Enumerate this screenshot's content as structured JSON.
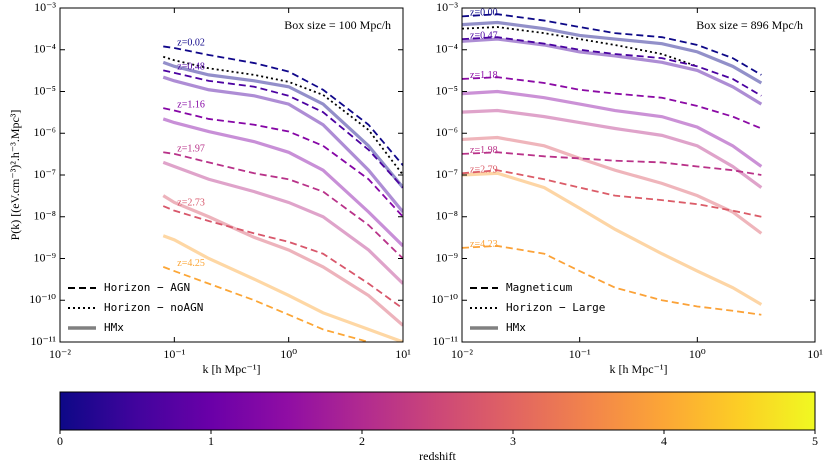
{
  "chart_data": [
    {
      "type": "line",
      "xscale": "log",
      "yscale": "log",
      "box_text": "Box size = 100 Mpc/h",
      "xlabel": "k [h Mpc⁻¹]",
      "ylabel": "P(k) [(eV.cm⁻³)².h⁻³.Mpc³]",
      "xlim": [
        0.01,
        10
      ],
      "ylim": [
        1e-11,
        0.001
      ],
      "xticks": [
        {
          "value": 0.01,
          "label": "10⁻²"
        },
        {
          "value": 0.1,
          "label": "10⁻¹"
        },
        {
          "value": 1,
          "label": "10⁰"
        },
        {
          "value": 10,
          "label": "10¹"
        }
      ],
      "yticks": [
        {
          "value": 1e-11,
          "label": "10⁻¹¹"
        },
        {
          "value": 1e-10,
          "label": "10⁻¹⁰"
        },
        {
          "value": 1e-09,
          "label": "10⁻⁹"
        },
        {
          "value": 1e-08,
          "label": "10⁻⁸"
        },
        {
          "value": 1e-07,
          "label": "10⁻⁷"
        },
        {
          "value": 1e-06,
          "label": "10⁻⁶"
        },
        {
          "value": 1e-05,
          "label": "10⁻⁵"
        },
        {
          "value": 0.0001,
          "label": "10⁻⁴"
        },
        {
          "value": 0.001,
          "label": "10⁻³"
        }
      ],
      "legend_loc": "lower left",
      "legend": [
        {
          "label": "Horizon − AGN",
          "dash": "dashed",
          "color": "#000000"
        },
        {
          "label": "Horizon − noAGN",
          "dash": "dotted",
          "color": "#000000"
        },
        {
          "label": "HMx",
          "dash": "solid",
          "color": "#808080"
        }
      ],
      "x": [
        0.08,
        0.1,
        0.2,
        0.5,
        1,
        2,
        5,
        10
      ],
      "series": [
        {
          "dash": "solid",
          "color": "#10078a",
          "opacity": 0.45,
          "values": [
            5e-05,
            4e-05,
            2.5e-05,
            1.8e-05,
            1.3e-05,
            5e-06,
            5e-07,
            5e-08
          ]
        },
        {
          "dash": "solid",
          "color": "#4c02a1",
          "opacity": 0.45,
          "values": [
            2.2e-05,
            1.8e-05,
            1.1e-05,
            7.9e-06,
            5e-06,
            1.6e-06,
            1.3e-07,
            1.3e-08
          ]
        },
        {
          "dash": "solid",
          "color": "#8606a6",
          "opacity": 0.45,
          "values": [
            2.2e-06,
            1.8e-06,
            1.1e-06,
            6.3e-07,
            3.5e-07,
            1.3e-07,
            1.3e-08,
            2e-09
          ]
        },
        {
          "dash": "solid",
          "color": "#b83289",
          "opacity": 0.45,
          "values": [
            2e-07,
            1.6e-07,
            7.9e-08,
            4e-08,
            2.2e-08,
            1e-08,
            1.6e-09,
            2.5e-10
          ]
        },
        {
          "dash": "solid",
          "color": "#d8576b",
          "opacity": 0.45,
          "values": [
            3.2e-08,
            2.2e-08,
            1e-08,
            3.2e-09,
            1.6e-09,
            6.3e-10,
            1.3e-10,
            2.5e-11
          ]
        },
        {
          "dash": "solid",
          "color": "#fca636",
          "opacity": 0.45,
          "values": [
            3.5e-09,
            2.8e-09,
            1e-09,
            3.2e-10,
            1.3e-10,
            5e-11,
            2e-11,
            1e-11
          ]
        },
        {
          "dash": "dotted",
          "color": "#000000",
          "opacity": 1,
          "values": [
            6.8e-05,
            5.6e-05,
            3.6e-05,
            2.5e-05,
            1.7e-05,
            8.3e-06,
            1.2e-06,
            1e-07
          ]
        },
        {
          "dash": "dashed",
          "color": "#10078a",
          "opacity": 1,
          "label": "z=0.02",
          "values": [
            0.00012,
            0.00011,
            7.5e-05,
            4.8e-05,
            3e-05,
            1.1e-05,
            1.6e-06,
            1.7e-07
          ]
        },
        {
          "dash": "dashed",
          "color": "#4c02a1",
          "opacity": 1,
          "label": "z=0.48",
          "values": [
            3.2e-05,
            2.8e-05,
            1.8e-05,
            1.3e-05,
            7.9e-06,
            3.2e-06,
            4e-07,
            5e-08
          ]
        },
        {
          "dash": "dashed",
          "color": "#8606a6",
          "opacity": 1,
          "label": "z=1.16",
          "values": [
            4e-06,
            3.5e-06,
            2.2e-06,
            1.6e-06,
            1.1e-06,
            5e-07,
            7.9e-08,
            1e-08
          ]
        },
        {
          "dash": "dashed",
          "color": "#b83289",
          "opacity": 1,
          "label": "z=1.97",
          "values": [
            3.5e-07,
            3.2e-07,
            2e-07,
            1.1e-07,
            7.9e-08,
            4e-08,
            6.3e-09,
            1e-09
          ]
        },
        {
          "dash": "dashed",
          "color": "#d8576b",
          "opacity": 1,
          "label": "z=2.73",
          "values": [
            1.8e-08,
            1.4e-08,
            7.9e-09,
            4e-09,
            2.5e-09,
            1.3e-09,
            2.5e-10,
            6.3e-11
          ]
        },
        {
          "dash": "dashed",
          "color": "#fca636",
          "opacity": 1,
          "label": "z=4.25",
          "values": [
            6.3e-10,
            5e-10,
            2.5e-10,
            1e-10,
            4.5e-11,
            2e-11,
            1e-11,
            null
          ]
        }
      ]
    },
    {
      "type": "line",
      "xscale": "log",
      "yscale": "log",
      "box_text": "Box size = 896 Mpc/h",
      "xlabel": "k [h Mpc⁻¹]",
      "xlim": [
        0.01,
        10
      ],
      "ylim": [
        1e-11,
        0.001
      ],
      "xticks": [
        {
          "value": 0.01,
          "label": "10⁻²"
        },
        {
          "value": 0.1,
          "label": "10⁻¹"
        },
        {
          "value": 1,
          "label": "10⁰"
        },
        {
          "value": 10,
          "label": "10¹"
        }
      ],
      "yticks": [
        {
          "value": 1e-11,
          "label": "10⁻¹¹"
        },
        {
          "value": 1e-10,
          "label": "10⁻¹⁰"
        },
        {
          "value": 1e-09,
          "label": "10⁻⁹"
        },
        {
          "value": 1e-08,
          "label": "10⁻⁸"
        },
        {
          "value": 1e-07,
          "label": "10⁻⁷"
        },
        {
          "value": 1e-06,
          "label": "10⁻⁶"
        },
        {
          "value": 1e-05,
          "label": "10⁻⁵"
        },
        {
          "value": 0.0001,
          "label": "10⁻⁴"
        },
        {
          "value": 0.001,
          "label": "10⁻³"
        }
      ],
      "legend_loc": "lower left",
      "legend": [
        {
          "label": "Magneticum",
          "dash": "dashed",
          "color": "#000000"
        },
        {
          "label": "Horizon − Large",
          "dash": "dotted",
          "color": "#000000"
        },
        {
          "label": "HMx",
          "dash": "solid",
          "color": "#808080"
        }
      ],
      "x": [
        0.01,
        0.02,
        0.05,
        0.1,
        0.2,
        0.5,
        1,
        2,
        3.5
      ],
      "series": [
        {
          "dash": "solid",
          "color": "#0d0887",
          "opacity": 0.45,
          "values": [
            0.0004,
            0.00045,
            0.00032,
            0.00022,
            0.00018,
            0.00014,
            8.9e-05,
            4e-05,
            1.6e-05
          ]
        },
        {
          "dash": "solid",
          "color": "#4a02a0",
          "opacity": 0.45,
          "values": [
            0.00016,
            0.00018,
            0.00013,
            8.9e-05,
            7.1e-05,
            5e-05,
            3.2e-05,
            1.3e-05,
            5e-06
          ]
        },
        {
          "dash": "solid",
          "color": "#8b0aa5",
          "opacity": 0.45,
          "values": [
            8.9e-06,
            1e-05,
            7.1e-06,
            5e-06,
            3.5e-06,
            2.5e-06,
            1.4e-06,
            5e-07,
            1.6e-07
          ]
        },
        {
          "dash": "solid",
          "color": "#b93289",
          "opacity": 0.45,
          "values": [
            3.2e-06,
            3.5e-06,
            2.5e-06,
            1.8e-06,
            1.3e-06,
            8.9e-07,
            5e-07,
            1.6e-07,
            5e-08
          ]
        },
        {
          "dash": "solid",
          "color": "#db5c68",
          "opacity": 0.45,
          "values": [
            7.1e-07,
            7.9e-07,
            5e-07,
            2.5e-07,
            1.3e-07,
            6.3e-08,
            3.2e-08,
            1.3e-08,
            4e-09
          ]
        },
        {
          "dash": "solid",
          "color": "#fba238",
          "opacity": 0.45,
          "values": [
            1e-07,
            1.1e-07,
            5e-08,
            1.6e-08,
            5e-09,
            1.3e-09,
            5e-10,
            2e-10,
            7.9e-11
          ]
        },
        {
          "dash": "dotted",
          "color": "#000000",
          "opacity": 1,
          "values": [
            0.00032,
            0.00035,
            0.00025,
            0.00018,
            0.00013,
            7.9e-05,
            4e-05,
            null,
            null
          ]
        },
        {
          "dash": "dashed",
          "color": "#0d0887",
          "opacity": 1,
          "label": "z=0.00",
          "values": [
            0.00063,
            0.00071,
            0.0005,
            0.00035,
            0.00025,
            0.0002,
            0.00013,
            6.3e-05,
            2.5e-05
          ]
        },
        {
          "dash": "dashed",
          "color": "#4a02a0",
          "opacity": 1,
          "label": "z=0.47",
          "values": [
            0.00018,
            0.0002,
            0.00014,
            0.0001,
            7.9e-05,
            6.3e-05,
            4e-05,
            2e-05,
            7.9e-06
          ]
        },
        {
          "dash": "dashed",
          "color": "#8b0aa5",
          "opacity": 1,
          "label": "z=1.18",
          "values": [
            2e-05,
            2.2e-05,
            1.6e-05,
            1.1e-05,
            8.9e-06,
            7.1e-06,
            4.5e-06,
            2.5e-06,
            1.3e-06
          ]
        },
        {
          "dash": "dashed",
          "color": "#b93289",
          "opacity": 1,
          "label": "z=1.98",
          "values": [
            3.2e-07,
            3.5e-07,
            2.8e-07,
            2.5e-07,
            2.2e-07,
            2e-07,
            1.6e-07,
            1.3e-07,
            1e-07
          ]
        },
        {
          "dash": "dashed",
          "color": "#db5c68",
          "opacity": 1,
          "label": "z=2.79",
          "values": [
            1.1e-07,
            1.3e-07,
            7.9e-08,
            5e-08,
            3.2e-08,
            2.5e-08,
            2e-08,
            1.4e-08,
            1e-08
          ]
        },
        {
          "dash": "dashed",
          "color": "#fba238",
          "opacity": 1,
          "label": "z=4.23",
          "values": [
            1.8e-09,
            2e-09,
            1.3e-09,
            5e-10,
            2e-10,
            1e-10,
            7.1e-11,
            5.6e-11,
            4.5e-11
          ]
        }
      ]
    },
    {
      "type": "colorbar",
      "colormap": "plasma",
      "label": "redshift",
      "lim": [
        0,
        5
      ],
      "ticks": [
        0,
        1,
        2,
        3,
        4,
        5
      ]
    }
  ]
}
